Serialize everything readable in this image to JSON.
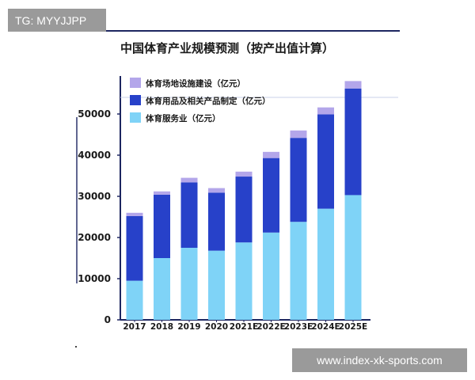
{
  "overlay": {
    "stamp_text": "TG: MYYJJPP",
    "site_link": "www.index-xk-sports.com"
  },
  "colors": {
    "construction": "#b3a6ea",
    "goods": "#2741c9",
    "services": "#7fd3f7",
    "axis": "#1d2660"
  },
  "chart_data": {
    "type": "bar",
    "stacked": true,
    "title": "中国体育产业规模预测（按产出值计算）",
    "categories": [
      "2017",
      "2018",
      "2019",
      "2020",
      "2021E",
      "2022E",
      "2023E",
      "2024E",
      "2025E"
    ],
    "series": [
      {
        "name": "体育服务业（亿元）",
        "values": [
          9500,
          15000,
          17500,
          16800,
          18800,
          21200,
          23800,
          27000,
          30300
        ]
      },
      {
        "name": "体育用品及相关产品制定（亿元）",
        "values": [
          15700,
          15400,
          15900,
          14100,
          16000,
          18100,
          20400,
          22900,
          25900
        ]
      },
      {
        "name": "体育场地设施建设（亿元）",
        "values": [
          800,
          800,
          1100,
          1100,
          1200,
          1500,
          1800,
          1700,
          1800
        ]
      }
    ],
    "ylim": [
      0,
      60000
    ],
    "yticks": [
      0,
      10000,
      20000,
      30000,
      40000,
      50000
    ],
    "legend_position": "top-left",
    "grid": false
  }
}
